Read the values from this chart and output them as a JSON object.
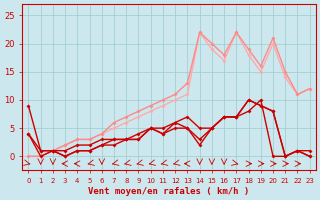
{
  "x": [
    0,
    1,
    2,
    3,
    4,
    5,
    6,
    7,
    8,
    9,
    10,
    11,
    12,
    13,
    14,
    15,
    16,
    17,
    18,
    19,
    20,
    21,
    22,
    23
  ],
  "series": [
    {
      "y": [
        0,
        0,
        1,
        2,
        3,
        3,
        4,
        5,
        6,
        7,
        8,
        9,
        10,
        11,
        22,
        19,
        17,
        22,
        18,
        15,
        20,
        14,
        11,
        12
      ],
      "color": "#ffaaaa",
      "lw": 1.0
    },
    {
      "y": [
        0,
        0,
        1,
        2,
        3,
        3,
        4,
        6,
        7,
        8,
        9,
        10,
        11,
        13,
        22,
        20,
        18,
        22,
        19,
        16,
        21,
        15,
        11,
        12
      ],
      "color": "#ff8888",
      "lw": 1.0
    },
    {
      "y": [
        9,
        1,
        1,
        1,
        2,
        2,
        3,
        3,
        3,
        4,
        5,
        5,
        6,
        7,
        5,
        5,
        7,
        7,
        8,
        10,
        0,
        0,
        1,
        1
      ],
      "color": "#cc0000",
      "lw": 1.0
    },
    {
      "y": [
        4,
        1,
        1,
        0,
        1,
        1,
        2,
        3,
        3,
        3,
        5,
        4,
        6,
        5,
        3,
        5,
        7,
        7,
        10,
        9,
        8,
        0,
        1,
        0
      ],
      "color": "#cc0000",
      "lw": 1.0
    },
    {
      "y": [
        4,
        0,
        1,
        0,
        1,
        1,
        2,
        2,
        3,
        3,
        5,
        4,
        5,
        5,
        2,
        5,
        7,
        7,
        10,
        9,
        8,
        0,
        1,
        0
      ],
      "color": "#cc0000",
      "lw": 1.0
    }
  ],
  "arrows": [
    {
      "x": 0,
      "dir": [
        1,
        -1
      ]
    },
    {
      "x": 1,
      "dir": [
        0,
        -1
      ]
    },
    {
      "x": 2,
      "dir": [
        0,
        -1
      ]
    },
    {
      "x": 3,
      "dir": [
        -1,
        0
      ]
    },
    {
      "x": 4,
      "dir": [
        -1,
        0
      ]
    },
    {
      "x": 5,
      "dir": [
        -1,
        -1
      ]
    },
    {
      "x": 6,
      "dir": [
        0,
        -1
      ]
    },
    {
      "x": 7,
      "dir": [
        -1,
        -1
      ]
    },
    {
      "x": 8,
      "dir": [
        -1,
        -1
      ]
    },
    {
      "x": 9,
      "dir": [
        -1,
        -1
      ]
    },
    {
      "x": 10,
      "dir": [
        -1,
        -1
      ]
    },
    {
      "x": 11,
      "dir": [
        -1,
        -1
      ]
    },
    {
      "x": 12,
      "dir": [
        -1,
        -1
      ]
    },
    {
      "x": 13,
      "dir": [
        -1,
        0
      ]
    },
    {
      "x": 14,
      "dir": [
        0,
        -1
      ]
    },
    {
      "x": 15,
      "dir": [
        0,
        -1
      ]
    },
    {
      "x": 16,
      "dir": [
        0,
        -1
      ]
    },
    {
      "x": 17,
      "dir": [
        1,
        -1
      ]
    },
    {
      "x": 18,
      "dir": [
        1,
        0
      ]
    },
    {
      "x": 19,
      "dir": [
        1,
        0
      ]
    },
    {
      "x": 20,
      "dir": [
        1,
        0
      ]
    },
    {
      "x": 21,
      "dir": [
        1,
        0
      ]
    },
    {
      "x": 22,
      "dir": [
        1,
        0
      ]
    }
  ],
  "xlabel": "Vent moyen/en rafales ( km/h )",
  "xlim": [
    -0.5,
    23.5
  ],
  "ylim": [
    -2.5,
    27
  ],
  "yticks": [
    0,
    5,
    10,
    15,
    20,
    25
  ],
  "xticks": [
    0,
    1,
    2,
    3,
    4,
    5,
    6,
    7,
    8,
    9,
    10,
    11,
    12,
    13,
    14,
    15,
    16,
    17,
    18,
    19,
    20,
    21,
    22,
    23
  ],
  "bg_color": "#cce8ee",
  "grid_color": "#99cccc",
  "axis_color": "#cc0000",
  "tick_color": "#cc0000",
  "label_color": "#cc0000"
}
